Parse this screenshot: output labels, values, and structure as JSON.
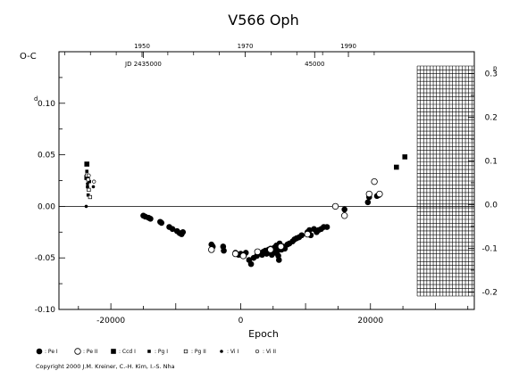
{
  "chart_data": {
    "type": "scatter",
    "title": "V566 Oph",
    "xlabel": "Epoch",
    "ylabel": "O-C",
    "xlim": [
      -28000,
      36000
    ],
    "ylim": [
      -0.1,
      0.15
    ],
    "xticks": [
      -20000,
      0,
      20000
    ],
    "xtick_labels": [
      "-20000",
      "0",
      "20000"
    ],
    "yticks": [
      -0.1,
      -0.05,
      0.0,
      0.05,
      0.1
    ],
    "ytick_labels": [
      "-0.10",
      "-0.05",
      "0.00",
      "0.05",
      "0.10"
    ],
    "ytick_prefix": "d",
    "right_axis": {
      "ylim": [
        -0.24,
        0.35
      ],
      "ticks": [
        -0.2,
        -0.1,
        0.0,
        0.1,
        0.2,
        0.3
      ],
      "tick_labels": [
        "-0.2",
        "-0.1",
        "0.0",
        "0.1",
        "0.2",
        "0.3"
      ],
      "prefix": "p"
    },
    "top_axis": {
      "year_ticks": [
        1950,
        1970,
        1990
      ],
      "year_tick_epochs": [
        -15200,
        700,
        16600
      ],
      "jd_labels": [
        "JD 2435000",
        "45000"
      ],
      "jd_label_epochs": [
        -15000,
        11400
      ]
    },
    "zero_line": 0.0,
    "grid_region": {
      "x_start": 27200,
      "x_end": 36000
    },
    "series": [
      {
        "name": "Pe I",
        "marker": "filled-circle",
        "points": [
          [
            -15000,
            -0.009
          ],
          [
            -14700,
            -0.01
          ],
          [
            -14200,
            -0.011
          ],
          [
            -13900,
            -0.012
          ],
          [
            -12400,
            -0.015
          ],
          [
            -12200,
            -0.016
          ],
          [
            -11000,
            -0.02
          ],
          [
            -10500,
            -0.022
          ],
          [
            -9800,
            -0.024
          ],
          [
            -9400,
            -0.026
          ],
          [
            -9100,
            -0.027
          ],
          [
            -8900,
            -0.025
          ],
          [
            -4500,
            -0.037
          ],
          [
            -4300,
            -0.039
          ],
          [
            -2700,
            -0.039
          ],
          [
            -2600,
            -0.043
          ],
          [
            -800,
            -0.045
          ],
          [
            -300,
            -0.047
          ],
          [
            0,
            -0.046
          ],
          [
            500,
            -0.048
          ],
          [
            800,
            -0.045
          ],
          [
            1300,
            -0.052
          ],
          [
            1600,
            -0.056
          ],
          [
            2000,
            -0.05
          ],
          [
            2500,
            -0.048
          ],
          [
            2800,
            -0.045
          ],
          [
            3300,
            -0.047
          ],
          [
            3500,
            -0.044
          ],
          [
            3800,
            -0.043
          ],
          [
            4000,
            -0.046
          ],
          [
            4300,
            -0.042
          ],
          [
            4600,
            -0.041
          ],
          [
            4800,
            -0.047
          ],
          [
            5000,
            -0.044
          ],
          [
            5200,
            -0.04
          ],
          [
            5400,
            -0.045
          ],
          [
            5500,
            -0.038
          ],
          [
            5700,
            -0.043
          ],
          [
            5800,
            -0.048
          ],
          [
            5900,
            -0.052
          ],
          [
            6000,
            -0.036
          ],
          [
            6100,
            -0.04
          ],
          [
            6300,
            -0.042
          ],
          [
            6500,
            -0.039
          ],
          [
            6800,
            -0.041
          ],
          [
            7200,
            -0.037
          ],
          [
            7500,
            -0.036
          ],
          [
            8000,
            -0.034
          ],
          [
            8300,
            -0.032
          ],
          [
            8600,
            -0.031
          ],
          [
            9000,
            -0.03
          ],
          [
            9400,
            -0.028
          ],
          [
            10300,
            -0.025
          ],
          [
            10600,
            -0.023
          ],
          [
            10800,
            -0.028
          ],
          [
            11300,
            -0.022
          ],
          [
            11700,
            -0.025
          ],
          [
            12000,
            -0.023
          ],
          [
            12400,
            -0.022
          ],
          [
            12800,
            -0.02
          ],
          [
            13300,
            -0.02
          ],
          [
            16000,
            -0.003
          ],
          [
            19600,
            0.004
          ],
          [
            19800,
            0.009
          ],
          [
            21000,
            0.01
          ],
          [
            21300,
            0.011
          ]
        ]
      },
      {
        "name": "Pe II",
        "marker": "open-circle",
        "points": [
          [
            -4500,
            -0.042
          ],
          [
            -800,
            -0.046
          ],
          [
            400,
            -0.048
          ],
          [
            2600,
            -0.044
          ],
          [
            4600,
            -0.042
          ],
          [
            6200,
            -0.039
          ],
          [
            10300,
            -0.027
          ],
          [
            14600,
            0.0
          ],
          [
            16000,
            -0.009
          ],
          [
            19800,
            0.012
          ],
          [
            20600,
            0.024
          ],
          [
            21400,
            0.012
          ]
        ]
      },
      {
        "name": "Ccd I",
        "marker": "filled-square",
        "points": [
          [
            -23700,
            0.041
          ],
          [
            -23700,
            0.028
          ],
          [
            24000,
            0.038
          ],
          [
            25300,
            0.048
          ]
        ]
      },
      {
        "name": "Pg I",
        "marker": "small-filled-square",
        "points": [
          [
            -23700,
            0.034
          ],
          [
            -23600,
            0.019
          ],
          [
            -23500,
            0.011
          ],
          [
            -23300,
            0.024
          ]
        ]
      },
      {
        "name": "Pg II",
        "marker": "small-open-square",
        "points": [
          [
            -23700,
            0.03
          ],
          [
            -23400,
            0.016
          ],
          [
            -23200,
            0.009
          ],
          [
            -23500,
            0.026
          ]
        ]
      },
      {
        "name": "Vi I",
        "marker": "small-filled-circle",
        "points": [
          [
            -23800,
            0.0
          ],
          [
            -23600,
            0.022
          ],
          [
            -22700,
            0.019
          ]
        ]
      },
      {
        "name": "Vi II",
        "marker": "small-open-circle",
        "points": [
          [
            -23400,
            0.03
          ],
          [
            -22600,
            0.024
          ]
        ]
      }
    ],
    "legend_position": "bottom",
    "legend": [
      {
        "marker": "filled-circle",
        "label": ": Pe I"
      },
      {
        "marker": "open-circle",
        "label": ": Pe II"
      },
      {
        "marker": "filled-square",
        "label": ": Ccd I"
      },
      {
        "marker": "small-filled-square",
        "label": ": Pg I"
      },
      {
        "marker": "small-open-square",
        "label": ": Pg II"
      },
      {
        "marker": "small-filled-circle",
        "label": ": Vi I"
      },
      {
        "marker": "small-open-circle",
        "label": ": Vi II"
      }
    ]
  },
  "copyright": "Copyright 2000 J.M. Kreiner, C.-H. Kim, I.-S. Nha"
}
